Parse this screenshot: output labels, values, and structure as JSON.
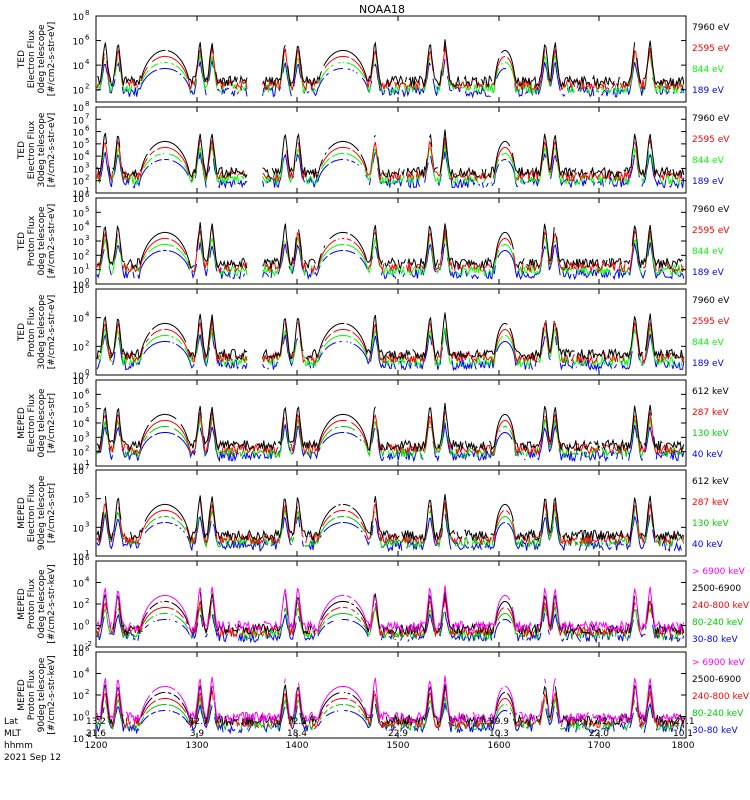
{
  "chart_data": {
    "type": "line",
    "title": "NOAA18",
    "x_ticks": [
      "1200",
      "1300",
      "1400",
      "1500",
      "1600",
      "1700",
      "1800"
    ],
    "orbit_ticks": {
      "labels": [
        "Lat",
        "MLT",
        "hhmm",
        "2021 Sep 12"
      ],
      "lat": [
        "13.2",
        "-42.7",
        "72.1",
        "-71.6",
        "39.9",
        "-7.2",
        "-27.1"
      ],
      "mlt": [
        "21.6",
        "3.9",
        "18.4",
        "22.9",
        "10.3",
        "22.0",
        "10.1"
      ],
      "hhmm": [
        "1200",
        "1300",
        "1400",
        "1500",
        "1600",
        "1700",
        "1800"
      ]
    },
    "panels": [
      {
        "ylabel": [
          "TED",
          "Electron Flux",
          "0deg telescope",
          "[#/cm2-s-str-eV]"
        ],
        "yticks": [
          {
            "label": "10",
            "exp": "2"
          },
          {
            "label": "10",
            "exp": "4"
          },
          {
            "label": "10",
            "exp": "6"
          },
          {
            "label": "10",
            "exp": "8"
          }
        ],
        "ylim_log": [
          1,
          8
        ],
        "series": [
          {
            "name": "7960 eV",
            "color": "#000000"
          },
          {
            "name": "2595 eV",
            "color": "#ff0000"
          },
          {
            "name": "844 eV",
            "color": "#00ff00"
          },
          {
            "name": "189 eV",
            "color": "#0000ff"
          }
        ]
      },
      {
        "ylabel": [
          "TED",
          "Electron Flux",
          "30deg telescope",
          "[#/cm2-s-str-eV]"
        ],
        "yticks": [
          {
            "label": "10",
            "exp": "1"
          },
          {
            "label": "10",
            "exp": "2"
          },
          {
            "label": "10",
            "exp": "3"
          },
          {
            "label": "10",
            "exp": "4"
          },
          {
            "label": "10",
            "exp": "5"
          },
          {
            "label": "10",
            "exp": "6"
          },
          {
            "label": "10",
            "exp": "7"
          },
          {
            "label": "10",
            "exp": "8"
          }
        ],
        "ylim_log": [
          1,
          8
        ],
        "series": [
          {
            "name": "7960 eV",
            "color": "#000000"
          },
          {
            "name": "2595 eV",
            "color": "#ff0000"
          },
          {
            "name": "844 eV",
            "color": "#00ff00"
          },
          {
            "name": "189 eV",
            "color": "#0000ff"
          }
        ]
      },
      {
        "ylabel": [
          "TED",
          "Proton Flux",
          "0deg telescope",
          "[#/cm2-s-str-eV]"
        ],
        "yticks": [
          {
            "label": "10",
            "exp": "0"
          },
          {
            "label": "10",
            "exp": "1"
          },
          {
            "label": "10",
            "exp": "2"
          },
          {
            "label": "10",
            "exp": "3"
          },
          {
            "label": "10",
            "exp": "4"
          },
          {
            "label": "10",
            "exp": "5"
          },
          {
            "label": "10",
            "exp": "6"
          }
        ],
        "ylim_log": [
          0,
          6
        ],
        "series": [
          {
            "name": "7960 eV",
            "color": "#000000"
          },
          {
            "name": "2595 eV",
            "color": "#ff0000"
          },
          {
            "name": "844 eV",
            "color": "#00ff00"
          },
          {
            "name": "189 eV",
            "color": "#0000ff"
          }
        ]
      },
      {
        "ylabel": [
          "TED",
          "Proton Flux",
          "30deg telescope",
          "[#/cm2-s-str-eV]"
        ],
        "yticks": [
          {
            "label": "10",
            "exp": "0"
          },
          {
            "label": "10",
            "exp": "2"
          },
          {
            "label": "10",
            "exp": "4"
          },
          {
            "label": "10",
            "exp": "6"
          }
        ],
        "ylim_log": [
          0,
          6
        ],
        "series": [
          {
            "name": "7960 eV",
            "color": "#000000"
          },
          {
            "name": "2595 eV",
            "color": "#ff0000"
          },
          {
            "name": "844 eV",
            "color": "#00ff00"
          },
          {
            "name": "189 eV",
            "color": "#0000ff"
          }
        ]
      },
      {
        "ylabel": [
          "MEPED",
          "Electron Flux",
          "0deg telescope",
          "[#/cm2-s-str]"
        ],
        "yticks": [
          {
            "label": "10",
            "exp": "1"
          },
          {
            "label": "10",
            "exp": "2"
          },
          {
            "label": "10",
            "exp": "3"
          },
          {
            "label": "10",
            "exp": "4"
          },
          {
            "label": "10",
            "exp": "5"
          },
          {
            "label": "10",
            "exp": "6"
          },
          {
            "label": "10",
            "exp": "7"
          }
        ],
        "ylim_log": [
          1,
          7
        ],
        "series": [
          {
            "name": "612 keV",
            "color": "#000000"
          },
          {
            "name": "287 keV",
            "color": "#ff0000"
          },
          {
            "name": "130 keV",
            "color": "#00cc00"
          },
          {
            "name": "40 keV",
            "color": "#0000ff"
          }
        ]
      },
      {
        "ylabel": [
          "MEPED",
          "Electron Flux",
          "90deg telescope",
          "[#/cm2-s-str]"
        ],
        "yticks": [
          {
            "label": "10",
            "exp": "1"
          },
          {
            "label": "10",
            "exp": "3"
          },
          {
            "label": "10",
            "exp": "5"
          },
          {
            "label": "10",
            "exp": "7"
          }
        ],
        "ylim_log": [
          1,
          7
        ],
        "series": [
          {
            "name": "612 keV",
            "color": "#000000"
          },
          {
            "name": "287 keV",
            "color": "#ff0000"
          },
          {
            "name": "130 keV",
            "color": "#00cc00"
          },
          {
            "name": "40 keV",
            "color": "#0000ff"
          }
        ]
      },
      {
        "ylabel": [
          "MEPED",
          "Proton Flux",
          "0deg telescope",
          "[#/cm2-s-str-keV]"
        ],
        "yticks": [
          {
            "label": "10",
            "exp": "-2"
          },
          {
            "label": "10",
            "exp": "0"
          },
          {
            "label": "10",
            "exp": "2"
          },
          {
            "label": "10",
            "exp": "4"
          },
          {
            "label": "10",
            "exp": "6"
          }
        ],
        "ylim_log": [
          -2,
          6
        ],
        "series": [
          {
            "name": "> 6900 keV",
            "color": "#ff00ff"
          },
          {
            "name": "2500-6900",
            "color": "#000000"
          },
          {
            "name": "240-800 keV",
            "color": "#ff0000"
          },
          {
            "name": "80-240 keV",
            "color": "#00cc00"
          },
          {
            "name": "30-80 keV",
            "color": "#0000ff"
          }
        ]
      },
      {
        "ylabel": [
          "MEPED",
          "Proton Flux",
          "90deg telescope",
          "[#/cm2-s-str-keV]"
        ],
        "yticks": [
          {
            "label": "10",
            "exp": "-2"
          },
          {
            "label": "10",
            "exp": "0"
          },
          {
            "label": "10",
            "exp": "2"
          },
          {
            "label": "10",
            "exp": "4"
          },
          {
            "label": "10",
            "exp": "6"
          }
        ],
        "ylim_log": [
          -2,
          6
        ],
        "series": [
          {
            "name": "> 6900 keV",
            "color": "#ff00ff"
          },
          {
            "name": "2500-6900",
            "color": "#000000"
          },
          {
            "name": "240-800 keV",
            "color": "#ff0000"
          },
          {
            "name": "80-240 keV",
            "color": "#00cc00"
          },
          {
            "name": "30-80 keV",
            "color": "#0000ff"
          }
        ]
      }
    ]
  }
}
